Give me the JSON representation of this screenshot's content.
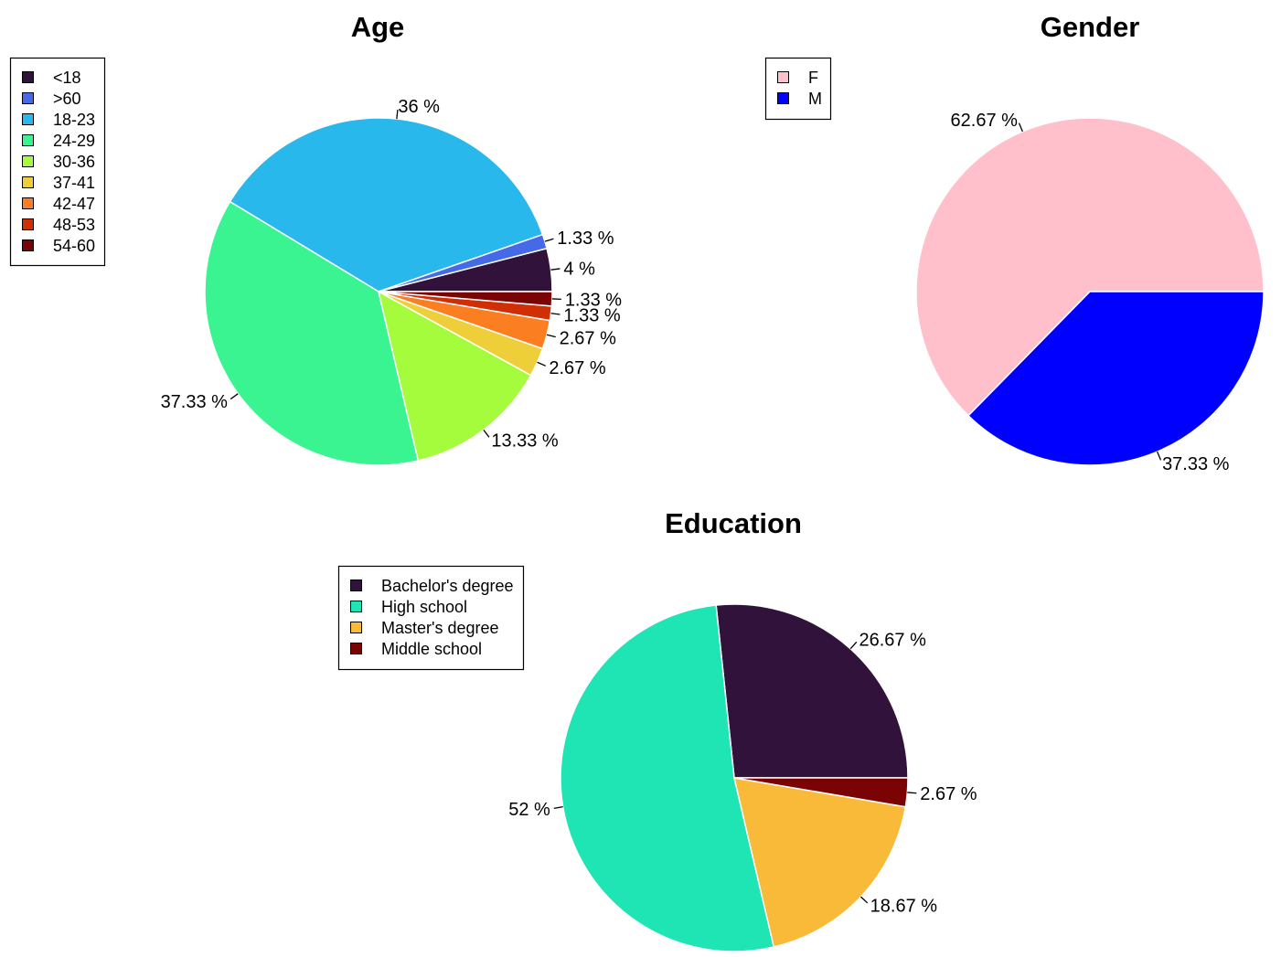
{
  "chart_data": [
    {
      "type": "pie",
      "title": "Age",
      "categories": [
        "<18",
        ">60",
        "18-23",
        "24-29",
        "30-36",
        "37-41",
        "42-47",
        "48-53",
        "54-60"
      ],
      "values": [
        4,
        1.33,
        36,
        37.33,
        13.33,
        2.67,
        2.67,
        1.33,
        1.33
      ],
      "labels": [
        "4 %",
        "1.33 %",
        "36 %",
        "37.33 %",
        "13.33 %",
        "2.67 %",
        "2.67 %",
        "1.33 %",
        "1.33 %"
      ],
      "colors": [
        "#30123B",
        "#4669E8",
        "#28B8EC",
        "#39F490",
        "#A4FC3C",
        "#EECF3A",
        "#FB7E21",
        "#D02F05",
        "#7A0403"
      ],
      "legend": [
        "<18",
        ">60",
        "18-23",
        "24-29",
        "30-36",
        "37-41",
        "42-47",
        "48-53",
        "54-60"
      ],
      "legend_position": "top-left",
      "direction": "counterclockwise",
      "start_angle_deg": 0
    },
    {
      "type": "pie",
      "title": "Gender",
      "categories": [
        "F",
        "M"
      ],
      "values": [
        62.67,
        37.33
      ],
      "labels": [
        "62.67 %",
        "37.33 %"
      ],
      "colors": [
        "#FFC0CB",
        "#0000FF"
      ],
      "legend": [
        "F",
        "M"
      ],
      "legend_position": "top-left",
      "direction": "counterclockwise",
      "start_angle_deg": 0
    },
    {
      "type": "pie",
      "title": "Education",
      "categories": [
        "Bachelor's degree",
        "High school",
        "Master's degree",
        "Middle school"
      ],
      "values": [
        26.67,
        52,
        18.67,
        2.67
      ],
      "labels": [
        "26.67 %",
        "52 %",
        "18.67 %",
        "2.67 %"
      ],
      "colors": [
        "#30123B",
        "#1FE5B5",
        "#FABA39",
        "#7A0403"
      ],
      "legend": [
        "Bachelor's degree",
        "High school",
        "Master's degree",
        "Middle school"
      ],
      "legend_position": "top-left",
      "direction": "counterclockwise",
      "start_angle_deg": 0
    }
  ]
}
